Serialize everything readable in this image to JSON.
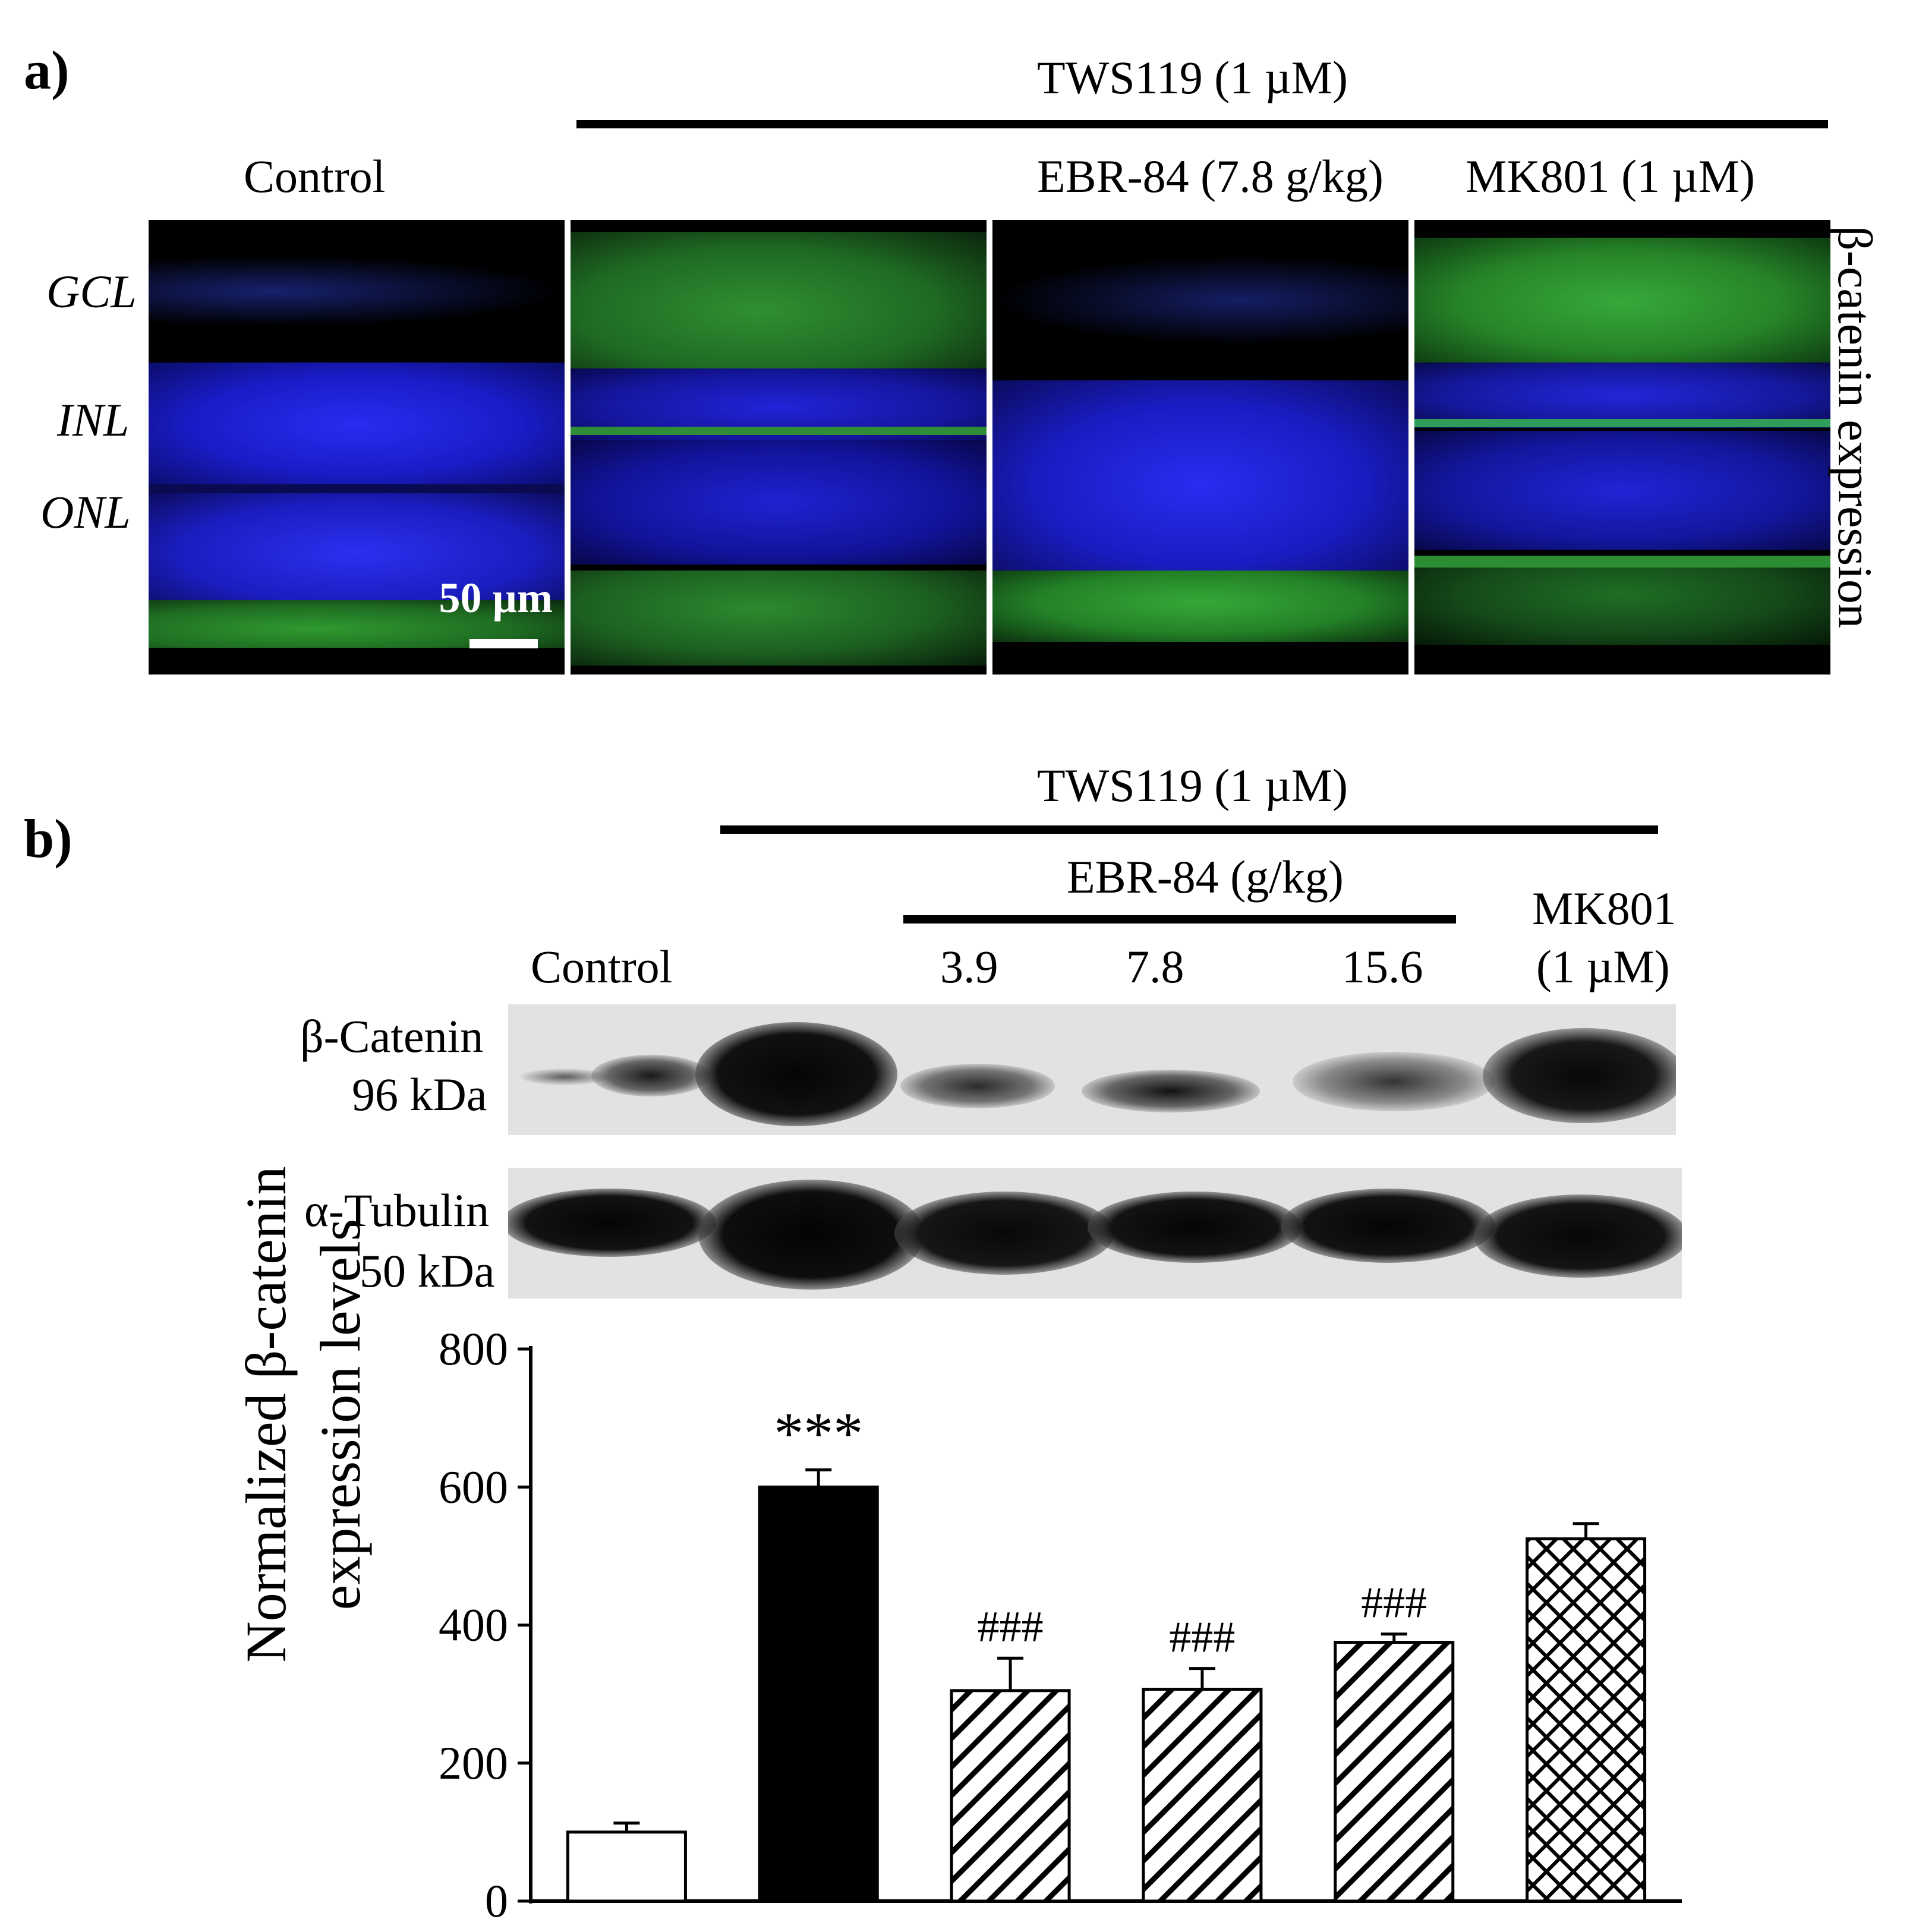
{
  "figure": {
    "panel_a": {
      "letter": "a)",
      "treatment_header": "TWS119 (1 µM)",
      "column_labels": {
        "control": "Control",
        "ebr": "EBR-84 (7.8 g/kg)",
        "mk": "MK801 (1 µM)"
      },
      "layer_labels": [
        "GCL",
        "INL",
        "ONL"
      ],
      "scale_bar_label": "50 µm",
      "side_label": "β-catenin expression"
    },
    "panel_b": {
      "letter": "b)",
      "treatment_header": "TWS119 (1 µM)",
      "ebr_header": "EBR-84 (g/kg)",
      "column_labels": {
        "control": "Control",
        "d1": "3.9",
        "d2": "7.8",
        "d3": "15.6",
        "mk_line1": "MK801",
        "mk_line2": "(1 µM)"
      },
      "blot_labels": {
        "catenin_name": "β-Catenin",
        "catenin_size": "96 kDa",
        "tubulin_name": "α-Tubulin",
        "tubulin_size": "50 kDa"
      }
    }
  },
  "chart_data": {
    "type": "bar",
    "categories": [
      "Control",
      "TWS119",
      "TWS119 + EBR-84 3.9",
      "TWS119 + EBR-84 7.8",
      "TWS119 + EBR-84 15.6",
      "TWS119 + MK801"
    ],
    "values": [
      100,
      600,
      305,
      307,
      375,
      525
    ],
    "errors": [
      13,
      25,
      47,
      30,
      12,
      22
    ],
    "annotations": [
      "",
      "***",
      "###",
      "###",
      "###",
      ""
    ],
    "fills": [
      "white",
      "black",
      "diagonal",
      "diagonal",
      "diagonal",
      "crosshatch"
    ],
    "ylabel_line1": "Normalized β-catenin",
    "ylabel_line2": "expression levels",
    "ylim": [
      0,
      800
    ],
    "yticks": [
      0,
      200,
      400,
      600,
      800
    ],
    "grid": false
  }
}
